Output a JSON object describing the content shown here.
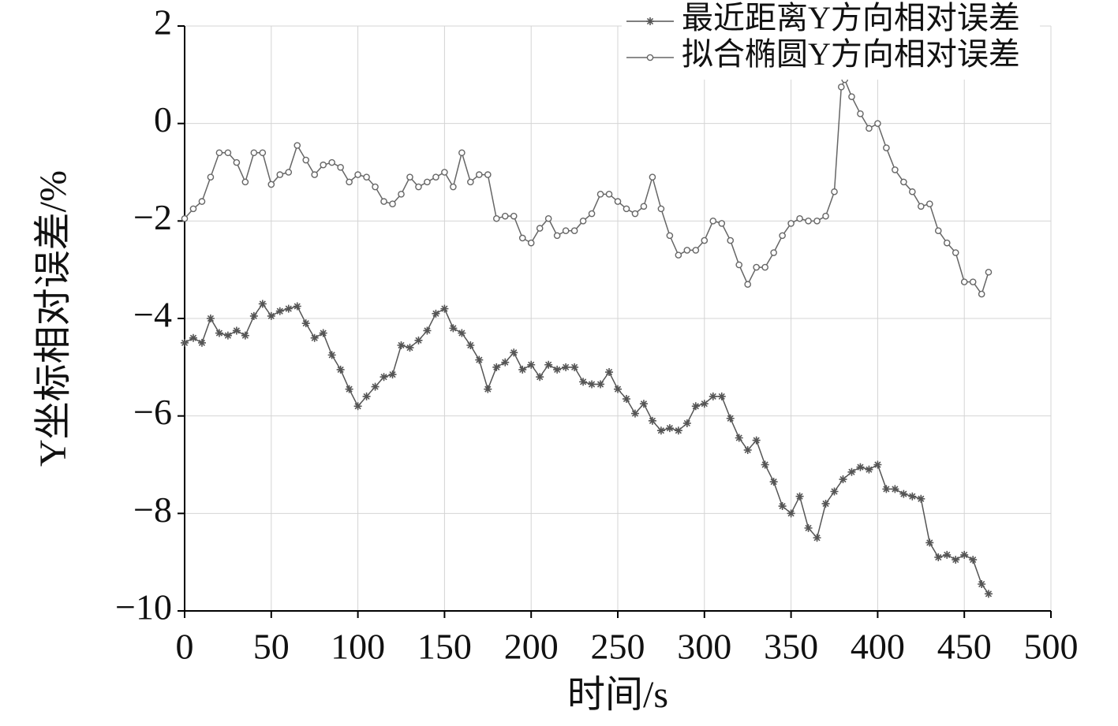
{
  "chart_data": {
    "type": "line",
    "x_label": "时间/s",
    "y_label": "Y坐标相对误差/%",
    "xlim": [
      0,
      500
    ],
    "xticks": [
      0,
      50,
      100,
      150,
      200,
      250,
      300,
      350,
      400,
      450,
      500
    ],
    "ylim": [
      -10,
      2
    ],
    "yticks": [
      {
        "value": -10,
        "label": "−10"
      },
      {
        "value": -8,
        "label": "−8"
      },
      {
        "value": -6,
        "label": "−6"
      },
      {
        "value": -4,
        "label": "−4"
      },
      {
        "value": -2,
        "label": "−2"
      },
      0,
      2
    ],
    "grid": true,
    "legend": "top-right",
    "series": [
      {
        "name": "最近距离Y方向相对误差",
        "color": "#555555",
        "marker": "star",
        "x": [
          0,
          5,
          10,
          15,
          20,
          25,
          30,
          35,
          40,
          45,
          50,
          55,
          60,
          65,
          70,
          75,
          80,
          85,
          90,
          95,
          100,
          105,
          110,
          115,
          120,
          125,
          130,
          135,
          140,
          145,
          150,
          155,
          160,
          165,
          170,
          175,
          180,
          185,
          190,
          195,
          200,
          205,
          210,
          215,
          220,
          225,
          230,
          235,
          240,
          245,
          250,
          255,
          260,
          265,
          270,
          275,
          280,
          285,
          290,
          295,
          300,
          305,
          310,
          315,
          320,
          325,
          330,
          335,
          340,
          345,
          350,
          355,
          360,
          365,
          370,
          375,
          380,
          385,
          390,
          395,
          400,
          405,
          410,
          415,
          420,
          425,
          430,
          435,
          440,
          445,
          450,
          455,
          460,
          464
        ],
        "values": [
          -4.5,
          -4.4,
          -4.5,
          -4.0,
          -4.3,
          -4.35,
          -4.25,
          -4.35,
          -3.95,
          -3.7,
          -3.95,
          -3.85,
          -3.8,
          -3.75,
          -4.1,
          -4.4,
          -4.3,
          -4.75,
          -5.05,
          -5.45,
          -5.8,
          -5.6,
          -5.4,
          -5.2,
          -5.15,
          -4.55,
          -4.6,
          -4.45,
          -4.25,
          -3.9,
          -3.8,
          -4.2,
          -4.3,
          -4.55,
          -4.85,
          -5.45,
          -5.0,
          -4.9,
          -4.7,
          -5.05,
          -4.95,
          -5.2,
          -4.95,
          -5.05,
          -5.0,
          -5.0,
          -5.3,
          -5.35,
          -5.35,
          -5.1,
          -5.45,
          -5.65,
          -5.95,
          -5.75,
          -6.1,
          -6.3,
          -6.25,
          -6.3,
          -6.15,
          -5.8,
          -5.75,
          -5.6,
          -5.6,
          -6.05,
          -6.45,
          -6.7,
          -6.5,
          -7.0,
          -7.35,
          -7.85,
          -8.0,
          -7.65,
          -8.3,
          -8.5,
          -7.8,
          -7.55,
          -7.3,
          -7.15,
          -7.05,
          -7.1,
          -7.0,
          -7.5,
          -7.5,
          -7.6,
          -7.65,
          -7.7,
          -8.6,
          -8.9,
          -8.85,
          -8.95,
          -8.85,
          -8.95,
          -9.45,
          -9.65
        ]
      },
      {
        "name": "拟合椭圆Y方向相对误差",
        "color": "#666666",
        "marker": "circle",
        "x": [
          0,
          5,
          10,
          15,
          20,
          25,
          30,
          35,
          40,
          45,
          50,
          55,
          60,
          65,
          70,
          75,
          80,
          85,
          90,
          95,
          100,
          105,
          110,
          115,
          120,
          125,
          130,
          135,
          140,
          145,
          150,
          155,
          160,
          165,
          170,
          175,
          180,
          185,
          190,
          195,
          200,
          205,
          210,
          215,
          220,
          225,
          230,
          235,
          240,
          245,
          250,
          255,
          260,
          265,
          270,
          275,
          280,
          285,
          290,
          295,
          300,
          305,
          310,
          315,
          320,
          325,
          330,
          335,
          340,
          345,
          350,
          355,
          360,
          365,
          370,
          375,
          379,
          381,
          385,
          390,
          395,
          400,
          405,
          410,
          415,
          420,
          425,
          430,
          435,
          440,
          445,
          450,
          455,
          460,
          464
        ],
        "values": [
          -1.95,
          -1.75,
          -1.6,
          -1.1,
          -0.6,
          -0.6,
          -0.8,
          -1.2,
          -0.6,
          -0.6,
          -1.25,
          -1.05,
          -1.0,
          -0.45,
          -0.75,
          -1.05,
          -0.85,
          -0.8,
          -0.9,
          -1.2,
          -1.05,
          -1.1,
          -1.3,
          -1.6,
          -1.65,
          -1.45,
          -1.1,
          -1.3,
          -1.2,
          -1.1,
          -1.0,
          -1.3,
          -0.6,
          -1.2,
          -1.05,
          -1.05,
          -1.95,
          -1.9,
          -1.9,
          -2.35,
          -2.45,
          -2.15,
          -1.95,
          -2.3,
          -2.2,
          -2.2,
          -2.0,
          -1.85,
          -1.45,
          -1.45,
          -1.6,
          -1.75,
          -1.85,
          -1.7,
          -1.1,
          -1.75,
          -2.3,
          -2.7,
          -2.6,
          -2.6,
          -2.4,
          -2.0,
          -2.05,
          -2.4,
          -2.9,
          -3.3,
          -2.95,
          -2.95,
          -2.65,
          -2.3,
          -2.05,
          -1.95,
          -2.0,
          -2.0,
          -1.9,
          -1.4,
          0.75,
          0.9,
          0.55,
          0.2,
          -0.1,
          0.0,
          -0.5,
          -0.95,
          -1.2,
          -1.4,
          -1.7,
          -1.65,
          -2.2,
          -2.45,
          -2.65,
          -3.25,
          -3.25,
          -3.5,
          -3.05
        ]
      }
    ]
  }
}
